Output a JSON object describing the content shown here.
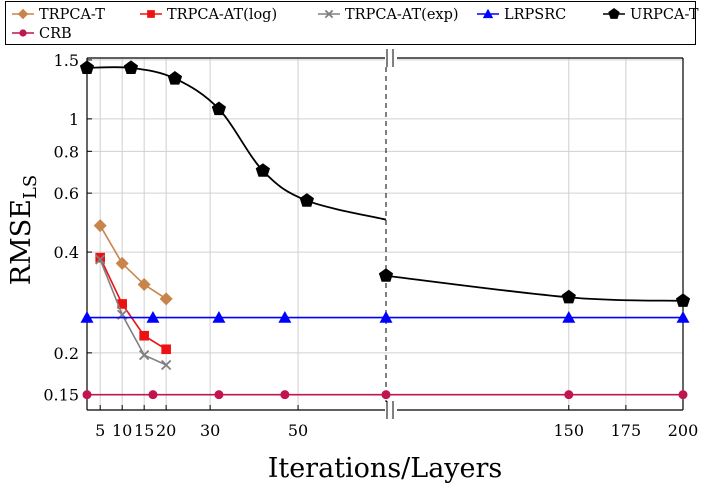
{
  "chart_data": {
    "type": "line",
    "xlabel": "Iterations/Layers",
    "ylabel_main": "RMSE",
    "ylabel_sub": "LS",
    "y_scale": "log",
    "ylim": [
      0.135,
      1.52
    ],
    "y_ticks": [
      0.15,
      0.2,
      0.4,
      0.6,
      0.8,
      1,
      1.5
    ],
    "y_tick_labels": [
      "0.15",
      "0.2",
      "0.4",
      "0.6",
      "0.8",
      "1",
      "1.5"
    ],
    "x_axis": {
      "broken": true,
      "left_range": [
        2,
        70
      ],
      "right_range": [
        70,
        200
      ],
      "ticks_left": [
        5,
        10,
        15,
        20,
        30,
        50
      ],
      "ticks_right": [
        150,
        175,
        200
      ],
      "tick_labels_left": [
        "5",
        "10",
        "15",
        "20",
        "30",
        "50"
      ],
      "tick_labels_right": [
        "150",
        "175",
        "200"
      ]
    },
    "grid": true,
    "legend_position": "top",
    "series": [
      {
        "name": "TRPCA-T",
        "color": "#c8844a",
        "marker": "diamond",
        "x": [
          5,
          10,
          15,
          20
        ],
        "y": [
          0.48,
          0.37,
          0.32,
          0.29
        ]
      },
      {
        "name": "TRPCA-AT(log)",
        "color": "#ee1111",
        "marker": "square",
        "x": [
          5,
          10,
          15,
          20
        ],
        "y": [
          0.385,
          0.28,
          0.225,
          0.205
        ]
      },
      {
        "name": "TRPCA-AT(exp)",
        "color": "#808080",
        "marker": "cross",
        "x": [
          5,
          10,
          15,
          20
        ],
        "y": [
          0.38,
          0.26,
          0.197,
          0.184
        ]
      },
      {
        "name": "LRPSRC",
        "color": "#0000ff",
        "marker": "triangle",
        "x": [
          2,
          17,
          32,
          47,
          70,
          150,
          200
        ],
        "y": [
          0.255,
          0.255,
          0.255,
          0.255,
          0.255,
          0.255,
          0.255
        ]
      },
      {
        "name": "URPCA-T",
        "color": "#000000",
        "marker": "pentagon",
        "segments": [
          {
            "x": [
              2,
              12,
              22,
              32,
              42,
              52
            ],
            "y": [
              1.42,
              1.42,
              1.32,
              1.07,
              0.7,
              0.57
            ]
          },
          {
            "x": [
              70,
              150,
              200
            ],
            "y": [
              0.34,
              0.293,
              0.286
            ]
          }
        ],
        "line_end": {
          "x": 70,
          "y": 0.5
        }
      },
      {
        "name": "CRB",
        "color": "#c0154f",
        "marker": "circle",
        "x": [
          2,
          17,
          32,
          47,
          70,
          150,
          200
        ],
        "y": [
          0.15,
          0.15,
          0.15,
          0.15,
          0.15,
          0.15,
          0.15
        ]
      }
    ]
  }
}
